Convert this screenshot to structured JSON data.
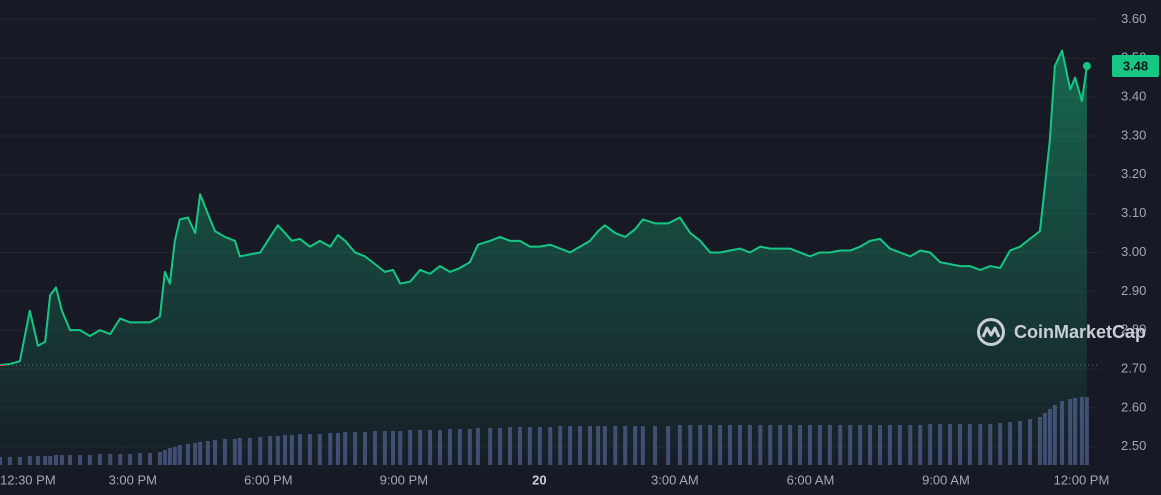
{
  "chart_data": {
    "type": "line",
    "x": [
      0.06,
      0.28,
      0.5,
      0.72,
      0.9,
      1.06,
      1.17,
      1.3,
      1.43,
      1.61,
      1.83,
      2.05,
      2.27,
      2.5,
      2.72,
      2.94,
      3.16,
      3.38,
      3.6,
      3.71,
      3.82,
      3.93,
      4.04,
      4.22,
      4.38,
      4.49,
      4.66,
      4.82,
      5.04,
      5.26,
      5.37,
      5.59,
      5.82,
      6.04,
      6.21,
      6.37,
      6.52,
      6.7,
      6.92,
      7.14,
      7.37,
      7.54,
      7.7,
      7.92,
      8.14,
      8.36,
      8.58,
      8.76,
      8.92,
      9.14,
      9.36,
      9.58,
      9.8,
      10.02,
      10.24,
      10.46,
      10.64,
      10.91,
      11.13,
      11.35,
      11.57,
      11.79,
      12.01,
      12.24,
      12.46,
      12.68,
      12.9,
      13.12,
      13.3,
      13.45,
      13.68,
      13.9,
      14.12,
      14.29,
      14.56,
      14.85,
      15.11,
      15.34,
      15.56,
      15.78,
      16.0,
      16.22,
      16.44,
      16.66,
      16.89,
      17.11,
      17.33,
      17.55,
      17.77,
      17.99,
      18.21,
      18.43,
      18.66,
      18.88,
      19.1,
      19.32,
      19.54,
      19.76,
      19.98,
      20.21,
      20.43,
      20.65,
      20.87,
      21.09,
      21.31,
      21.53,
      21.76,
      21.98,
      22.2,
      22.42,
      22.64,
      22.86,
      23.08,
      23.19,
      23.3,
      23.41,
      23.57,
      23.75,
      23.86,
      24.01,
      24.12
    ],
    "values": [
      2.71,
      2.713,
      2.72,
      2.85,
      2.76,
      2.77,
      2.89,
      2.91,
      2.85,
      2.8,
      2.8,
      2.785,
      2.8,
      2.79,
      2.83,
      2.82,
      2.82,
      2.82,
      2.835,
      2.95,
      2.92,
      3.03,
      3.085,
      3.09,
      3.05,
      3.15,
      3.1,
      3.055,
      3.04,
      3.03,
      2.99,
      2.995,
      3.0,
      3.04,
      3.07,
      3.05,
      3.03,
      3.035,
      3.015,
      3.03,
      3.015,
      3.045,
      3.03,
      3.0,
      2.99,
      2.97,
      2.95,
      2.955,
      2.92,
      2.925,
      2.955,
      2.945,
      2.965,
      2.95,
      2.96,
      2.975,
      3.02,
      3.03,
      3.04,
      3.03,
      3.03,
      3.015,
      3.015,
      3.02,
      3.01,
      3.0,
      3.015,
      3.03,
      3.055,
      3.07,
      3.05,
      3.04,
      3.06,
      3.085,
      3.075,
      3.075,
      3.09,
      3.05,
      3.03,
      3.0,
      3.0,
      3.005,
      3.01,
      3.0,
      3.015,
      3.01,
      3.01,
      3.01,
      3.0,
      2.99,
      3.0,
      3.0,
      3.005,
      3.005,
      3.015,
      3.03,
      3.035,
      3.01,
      3.0,
      2.99,
      3.005,
      3.0,
      2.975,
      2.97,
      2.965,
      2.965,
      2.955,
      2.965,
      2.96,
      3.005,
      3.015,
      3.035,
      3.055,
      3.17,
      3.29,
      3.48,
      3.52,
      3.42,
      3.45,
      3.39,
      3.48
    ],
    "color": "#16c784",
    "down_color": "#ea3943",
    "baseline": 2.71,
    "volume": {
      "color": "#4b5280",
      "ylim": [
        0,
        100
      ],
      "values": [
        8,
        8,
        8,
        9,
        9,
        9,
        9,
        10,
        10,
        10,
        10,
        10,
        11,
        11,
        11,
        11,
        12,
        12,
        13,
        15,
        17,
        18,
        20,
        21,
        22,
        23,
        24,
        25,
        26,
        26,
        27,
        27,
        28,
        29,
        29,
        30,
        30,
        31,
        31,
        31,
        32,
        32,
        33,
        33,
        33,
        34,
        34,
        34,
        34,
        35,
        35,
        35,
        35,
        36,
        36,
        36,
        37,
        37,
        37,
        38,
        38,
        38,
        38,
        38,
        39,
        39,
        39,
        39,
        39,
        39,
        39,
        39,
        39,
        39,
        39,
        39,
        40,
        40,
        40,
        40,
        40,
        40,
        40,
        40,
        40,
        40,
        40,
        40,
        40,
        40,
        40,
        40,
        40,
        40,
        40,
        40,
        40,
        40,
        40,
        40,
        40,
        41,
        41,
        41,
        41,
        41,
        41,
        41,
        42,
        43,
        44,
        46,
        48,
        52,
        56,
        60,
        64,
        66,
        67,
        68,
        68
      ]
    },
    "xlim": [
      0.06,
      24.41
    ],
    "ylim": [
      2.44,
      3.65
    ],
    "yticks": [
      {
        "value": 2.5,
        "label": "2.50"
      },
      {
        "value": 2.6,
        "label": "2.60"
      },
      {
        "value": 2.7,
        "label": "2.70"
      },
      {
        "value": 2.8,
        "label": "2.80"
      },
      {
        "value": 2.9,
        "label": "2.90"
      },
      {
        "value": 3.0,
        "label": "3.00"
      },
      {
        "value": 3.1,
        "label": "3.10"
      },
      {
        "value": 3.2,
        "label": "3.20"
      },
      {
        "value": 3.3,
        "label": "3.30"
      },
      {
        "value": 3.4,
        "label": "3.40"
      },
      {
        "value": 3.5,
        "label": "3.50"
      },
      {
        "value": 3.6,
        "label": "3.60"
      }
    ],
    "xticks": [
      {
        "value": 0.5,
        "label": "12:30 PM"
      },
      {
        "value": 3,
        "label": "3:00 PM"
      },
      {
        "value": 6,
        "label": "6:00 PM"
      },
      {
        "value": 9,
        "label": "9:00 PM"
      },
      {
        "value": 12,
        "label": "20"
      },
      {
        "value": 15,
        "label": "3:00 AM"
      },
      {
        "value": 18,
        "label": "6:00 AM"
      },
      {
        "value": 21,
        "label": "9:00 AM"
      },
      {
        "value": 24,
        "label": "12:00 PM"
      }
    ],
    "grid": true,
    "watermark": "CoinMarketCap"
  }
}
